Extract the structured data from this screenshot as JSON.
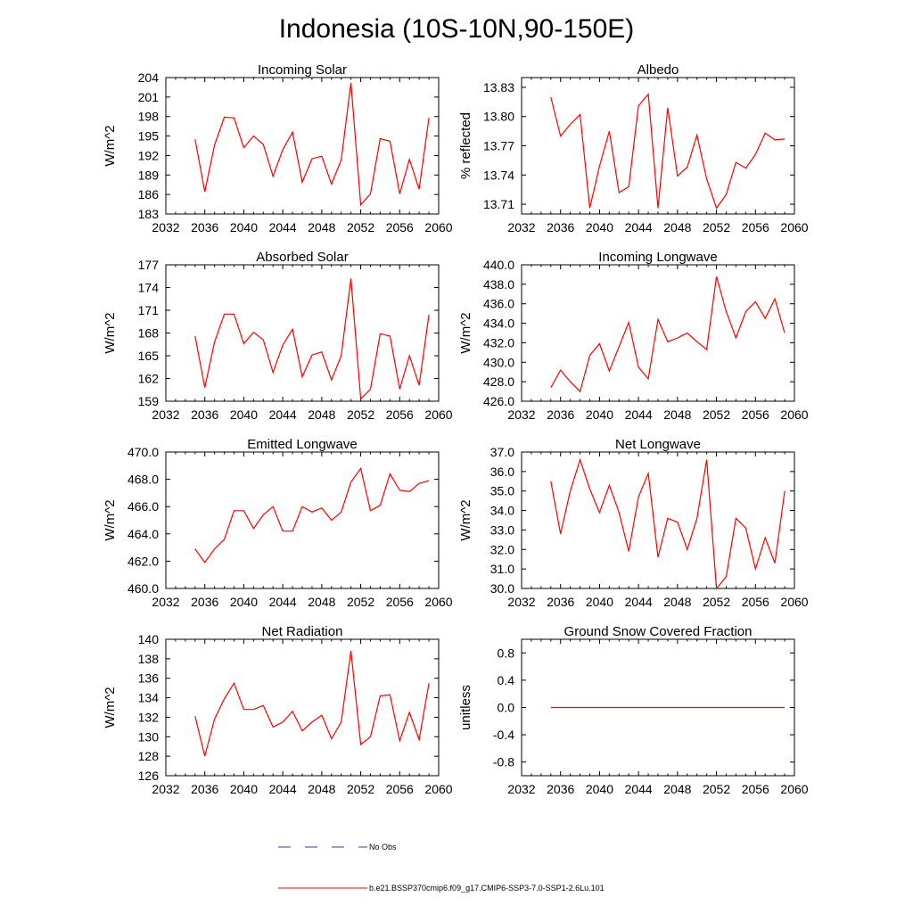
{
  "figure": {
    "title": "Indonesia (10S-10N,90-150E)"
  },
  "legend": {
    "obs_label": "No Obs",
    "model_label": "b.e21.BSSP370cmip6.f09_g17.CMIP6-SSP3-7.0-SSP1-2.6Lu.101",
    "obs_color": "#3a3aa8",
    "model_color": "#ff0000"
  },
  "chart_data": [
    {
      "type": "line",
      "title": "Incoming Solar",
      "ylabel": "W/m^2",
      "xlim": [
        2032,
        2060
      ],
      "ylim": [
        183,
        204
      ],
      "xticks": [
        2032,
        2036,
        2040,
        2044,
        2048,
        2052,
        2056,
        2060
      ],
      "yticks": [
        "183",
        "186",
        "189",
        "192",
        "195",
        "198",
        "201",
        "204"
      ],
      "x": [
        2035,
        2036,
        2037,
        2038,
        2039,
        2040,
        2041,
        2042,
        2043,
        2044,
        2045,
        2046,
        2047,
        2048,
        2049,
        2050,
        2051,
        2052,
        2053,
        2054,
        2055,
        2056,
        2057,
        2058,
        2059
      ],
      "series": [
        {
          "values": [
            194.5,
            186.4,
            193.6,
            197.9,
            197.8,
            193.2,
            195.0,
            193.7,
            188.8,
            192.9,
            195.6,
            187.9,
            191.5,
            191.9,
            187.6,
            191.3,
            203.2,
            184.4,
            186.1,
            194.6,
            194.2,
            186.1,
            191.4,
            186.8,
            197.8
          ],
          "color": "#ff0000"
        }
      ]
    },
    {
      "type": "line",
      "title": "Albedo",
      "ylabel": "% reflected",
      "xlim": [
        2032,
        2060
      ],
      "ylim": [
        13.7,
        13.84
      ],
      "xticks": [
        2032,
        2036,
        2040,
        2044,
        2048,
        2052,
        2056,
        2060
      ],
      "yticks": [
        "13.71",
        "13.74",
        "13.77",
        "13.80",
        "13.83"
      ],
      "ytick_values": [
        13.71,
        13.74,
        13.77,
        13.8,
        13.83
      ],
      "x": [
        2035,
        2036,
        2037,
        2038,
        2039,
        2040,
        2041,
        2042,
        2043,
        2044,
        2045,
        2046,
        2047,
        2048,
        2049,
        2050,
        2051,
        2052,
        2053,
        2054,
        2055,
        2056,
        2057,
        2058,
        2059
      ],
      "series": [
        {
          "values": [
            13.82,
            13.78,
            13.792,
            13.802,
            13.706,
            13.749,
            13.785,
            13.722,
            13.728,
            13.811,
            13.823,
            13.706,
            13.809,
            13.739,
            13.748,
            13.781,
            13.736,
            13.706,
            13.72,
            13.753,
            13.747,
            13.761,
            13.783,
            13.776,
            13.777
          ],
          "color": "#ff0000"
        }
      ]
    },
    {
      "type": "line",
      "title": "Absorbed Solar",
      "ylabel": "W/m^2",
      "xlim": [
        2032,
        2060
      ],
      "ylim": [
        159,
        177
      ],
      "xticks": [
        2032,
        2036,
        2040,
        2044,
        2048,
        2052,
        2056,
        2060
      ],
      "yticks": [
        "159",
        "162",
        "165",
        "168",
        "171",
        "174",
        "177"
      ],
      "x": [
        2035,
        2036,
        2037,
        2038,
        2039,
        2040,
        2041,
        2042,
        2043,
        2044,
        2045,
        2046,
        2047,
        2048,
        2049,
        2050,
        2051,
        2052,
        2053,
        2054,
        2055,
        2056,
        2057,
        2058,
        2059
      ],
      "series": [
        {
          "values": [
            167.6,
            160.8,
            166.8,
            170.5,
            170.5,
            166.6,
            168.1,
            167.1,
            162.8,
            166.4,
            168.5,
            162.2,
            165.1,
            165.5,
            161.8,
            165.0,
            175.2,
            159.3,
            160.6,
            167.9,
            167.6,
            160.6,
            165.0,
            161.1,
            170.4
          ],
          "color": "#ff0000"
        }
      ]
    },
    {
      "type": "line",
      "title": "Incoming Longwave",
      "ylabel": "W/m^2",
      "xlim": [
        2032,
        2060
      ],
      "ylim": [
        426,
        440
      ],
      "xticks": [
        2032,
        2036,
        2040,
        2044,
        2048,
        2052,
        2056,
        2060
      ],
      "yticks": [
        "426.0",
        "428.0",
        "430.0",
        "432.0",
        "434.0",
        "436.0",
        "438.0",
        "440.0"
      ],
      "x": [
        2035,
        2036,
        2037,
        2038,
        2039,
        2040,
        2041,
        2042,
        2043,
        2044,
        2045,
        2046,
        2047,
        2048,
        2049,
        2050,
        2051,
        2052,
        2053,
        2054,
        2055,
        2056,
        2057,
        2058,
        2059
      ],
      "series": [
        {
          "values": [
            427.4,
            429.2,
            428.0,
            427.0,
            430.7,
            431.9,
            429.1,
            431.6,
            434.1,
            429.5,
            428.3,
            434.4,
            432.1,
            432.5,
            433.0,
            432.1,
            431.3,
            438.8,
            435.2,
            432.5,
            435.2,
            436.2,
            434.5,
            436.5,
            433.0
          ],
          "color": "#ff0000"
        }
      ]
    },
    {
      "type": "line",
      "title": "Emitted Longwave",
      "ylabel": "W/m^2",
      "xlim": [
        2032,
        2060
      ],
      "ylim": [
        460,
        470
      ],
      "xticks": [
        2032,
        2036,
        2040,
        2044,
        2048,
        2052,
        2056,
        2060
      ],
      "yticks": [
        "460.0",
        "462.0",
        "464.0",
        "466.0",
        "468.0",
        "470.0"
      ],
      "x": [
        2035,
        2036,
        2037,
        2038,
        2039,
        2040,
        2041,
        2042,
        2043,
        2044,
        2045,
        2046,
        2047,
        2048,
        2049,
        2050,
        2051,
        2052,
        2053,
        2054,
        2055,
        2056,
        2057,
        2058,
        2059
      ],
      "series": [
        {
          "values": [
            462.9,
            461.9,
            462.9,
            463.6,
            465.7,
            465.7,
            464.4,
            465.4,
            466.0,
            464.2,
            464.2,
            466.0,
            465.6,
            465.9,
            465.0,
            465.6,
            467.8,
            468.8,
            465.7,
            466.1,
            468.4,
            467.2,
            467.1,
            467.7,
            467.9
          ],
          "color": "#ff0000"
        }
      ]
    },
    {
      "type": "line",
      "title": "Net Longwave",
      "ylabel": "W/m^2",
      "xlim": [
        2032,
        2060
      ],
      "ylim": [
        30,
        37
      ],
      "xticks": [
        2032,
        2036,
        2040,
        2044,
        2048,
        2052,
        2056,
        2060
      ],
      "yticks": [
        "30.0",
        "31.0",
        "32.0",
        "33.0",
        "34.0",
        "35.0",
        "36.0",
        "37.0"
      ],
      "x": [
        2035,
        2036,
        2037,
        2038,
        2039,
        2040,
        2041,
        2042,
        2043,
        2044,
        2045,
        2046,
        2047,
        2048,
        2049,
        2050,
        2051,
        2052,
        2053,
        2054,
        2055,
        2056,
        2057,
        2058,
        2059
      ],
      "series": [
        {
          "values": [
            35.5,
            32.8,
            35.0,
            36.6,
            35.1,
            33.9,
            35.3,
            33.9,
            31.9,
            34.7,
            35.9,
            31.6,
            33.6,
            33.4,
            32.0,
            33.6,
            36.6,
            30.0,
            30.6,
            33.6,
            33.1,
            31.0,
            32.6,
            31.3,
            35.0
          ],
          "color": "#ff0000"
        }
      ]
    },
    {
      "type": "line",
      "title": "Net Radiation",
      "ylabel": "W/m^2",
      "xlim": [
        2032,
        2060
      ],
      "ylim": [
        126,
        140
      ],
      "xticks": [
        2032,
        2036,
        2040,
        2044,
        2048,
        2052,
        2056,
        2060
      ],
      "yticks": [
        "126",
        "128",
        "130",
        "132",
        "134",
        "136",
        "138",
        "140"
      ],
      "x": [
        2035,
        2036,
        2037,
        2038,
        2039,
        2040,
        2041,
        2042,
        2043,
        2044,
        2045,
        2046,
        2047,
        2048,
        2049,
        2050,
        2051,
        2052,
        2053,
        2054,
        2055,
        2056,
        2057,
        2058,
        2059
      ],
      "series": [
        {
          "values": [
            132.1,
            128.0,
            131.8,
            133.9,
            135.5,
            132.8,
            132.8,
            133.2,
            131.0,
            131.5,
            132.6,
            130.6,
            131.5,
            132.2,
            129.8,
            131.5,
            138.8,
            129.2,
            130.0,
            134.2,
            134.3,
            129.6,
            132.5,
            129.7,
            135.5
          ],
          "color": "#ff0000"
        }
      ]
    },
    {
      "type": "line",
      "title": "Ground Snow Covered Fraction",
      "ylabel": "unitless",
      "xlim": [
        2032,
        2060
      ],
      "ylim": [
        -1.0,
        1.0
      ],
      "xticks": [
        2032,
        2036,
        2040,
        2044,
        2048,
        2052,
        2056,
        2060
      ],
      "yticks": [
        "-0.8",
        "-0.4",
        "0.0",
        "0.4",
        "0.8"
      ],
      "ytick_values": [
        -0.8,
        -0.4,
        0.0,
        0.4,
        0.8
      ],
      "x": [
        2035,
        2036,
        2037,
        2038,
        2039,
        2040,
        2041,
        2042,
        2043,
        2044,
        2045,
        2046,
        2047,
        2048,
        2049,
        2050,
        2051,
        2052,
        2053,
        2054,
        2055,
        2056,
        2057,
        2058,
        2059
      ],
      "series": [
        {
          "values": [
            0,
            0,
            0,
            0,
            0,
            0,
            0,
            0,
            0,
            0,
            0,
            0,
            0,
            0,
            0,
            0,
            0,
            0,
            0,
            0,
            0,
            0,
            0,
            0,
            0
          ],
          "color": "#ff0000"
        }
      ]
    }
  ]
}
